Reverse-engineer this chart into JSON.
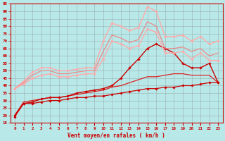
{
  "bg_color": "#b8e8e8",
  "grid_color": "#888888",
  "xlabel": "Vent moyen/en rafales ( km/h )",
  "xlabel_color": "#cc0000",
  "tick_color": "#cc0000",
  "xlim": [
    -0.5,
    23.5
  ],
  "ylim": [
    15,
    95
  ],
  "yticks": [
    15,
    20,
    25,
    30,
    35,
    40,
    45,
    50,
    55,
    60,
    65,
    70,
    75,
    80,
    85,
    90,
    95
  ],
  "xticks": [
    0,
    1,
    2,
    3,
    4,
    5,
    6,
    7,
    8,
    9,
    10,
    11,
    12,
    13,
    14,
    15,
    16,
    17,
    18,
    19,
    20,
    21,
    22,
    23
  ],
  "lines": [
    {
      "x": [
        0,
        1,
        2,
        3,
        4,
        5,
        6,
        7,
        8,
        9,
        10,
        11,
        12,
        13,
        14,
        15,
        16,
        17,
        18,
        19,
        20,
        21,
        22,
        23
      ],
      "y": [
        19,
        28,
        28,
        29,
        30,
        30,
        31,
        32,
        32,
        33,
        33,
        34,
        35,
        36,
        37,
        38,
        38,
        39,
        39,
        40,
        40,
        41,
        42,
        42
      ],
      "color": "#cc0000",
      "lw": 0.9,
      "marker": "D",
      "ms": 1.8
    },
    {
      "x": [
        0,
        1,
        2,
        3,
        4,
        5,
        6,
        7,
        8,
        9,
        10,
        11,
        12,
        13,
        14,
        15,
        16,
        17,
        18,
        19,
        20,
        21,
        22,
        23
      ],
      "y": [
        20,
        29,
        30,
        31,
        32,
        32,
        33,
        34,
        35,
        36,
        37,
        39,
        40,
        42,
        44,
        46,
        46,
        47,
        48,
        48,
        47,
        47,
        47,
        42
      ],
      "color": "#dd2222",
      "lw": 0.9,
      "marker": null,
      "ms": 0
    },
    {
      "x": [
        0,
        1,
        2,
        3,
        4,
        5,
        6,
        7,
        8,
        9,
        10,
        11,
        12,
        13,
        14,
        15,
        16,
        17,
        18,
        19,
        20,
        21,
        22,
        23
      ],
      "y": [
        20,
        28,
        29,
        31,
        32,
        32,
        33,
        35,
        36,
        37,
        38,
        40,
        45,
        52,
        58,
        65,
        68,
        65,
        62,
        55,
        52,
        52,
        55,
        42
      ],
      "color": "#cc0000",
      "lw": 1.0,
      "marker": "D",
      "ms": 1.8
    },
    {
      "x": [
        0,
        1,
        2,
        3,
        4,
        5,
        6,
        7,
        8,
        9,
        10,
        11,
        12,
        13,
        14,
        15,
        16,
        17,
        18,
        19,
        20,
        21,
        22,
        23
      ],
      "y": [
        38,
        43,
        49,
        52,
        52,
        50,
        50,
        51,
        52,
        52,
        70,
        82,
        80,
        77,
        79,
        93,
        90,
        73,
        73,
        74,
        70,
        73,
        68,
        70
      ],
      "color": "#ffaaaa",
      "lw": 1.0,
      "marker": "D",
      "ms": 1.8
    },
    {
      "x": [
        0,
        1,
        2,
        3,
        4,
        5,
        6,
        7,
        8,
        9,
        10,
        11,
        12,
        13,
        14,
        15,
        16,
        17,
        18,
        19,
        20,
        21,
        22,
        23
      ],
      "y": [
        38,
        42,
        47,
        50,
        50,
        48,
        48,
        49,
        50,
        50,
        63,
        74,
        72,
        69,
        71,
        83,
        80,
        65,
        65,
        66,
        63,
        65,
        60,
        62
      ],
      "color": "#ee8888",
      "lw": 0.9,
      "marker": null,
      "ms": 0
    },
    {
      "x": [
        0,
        1,
        2,
        3,
        4,
        5,
        6,
        7,
        8,
        9,
        10,
        11,
        12,
        13,
        14,
        15,
        16,
        17,
        18,
        19,
        20,
        21,
        22,
        23
      ],
      "y": [
        38,
        41,
        45,
        47,
        48,
        46,
        46,
        47,
        48,
        48,
        58,
        70,
        68,
        65,
        67,
        78,
        76,
        62,
        62,
        63,
        58,
        62,
        57,
        57
      ],
      "color": "#ffaaaa",
      "lw": 1.0,
      "marker": "D",
      "ms": 1.8
    }
  ]
}
